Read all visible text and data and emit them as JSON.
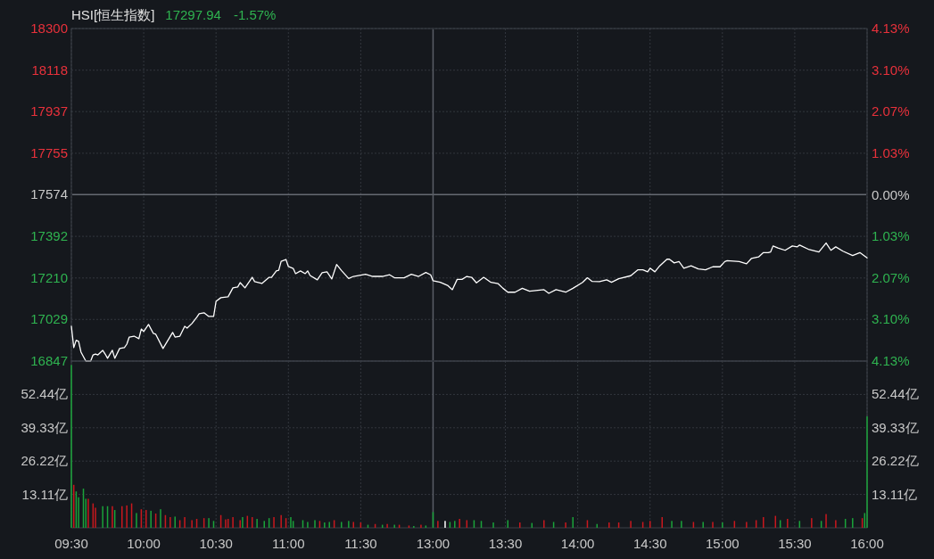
{
  "chart_data": [
    {
      "type": "line",
      "title": "HSI[恒生指数]",
      "annotations": [
        "17297.94",
        "-1.57%"
      ],
      "categories": [
        "09:30",
        null,
        null,
        null,
        null,
        null,
        null,
        null,
        null,
        null,
        null,
        null,
        null,
        null,
        null,
        null,
        null,
        null,
        null,
        null,
        null,
        null,
        null,
        null,
        null,
        null,
        null,
        null,
        null,
        null,
        "10:00",
        null,
        null,
        null,
        null,
        null,
        null,
        null,
        null,
        null,
        null,
        null,
        null,
        null,
        null,
        null,
        null,
        null,
        null,
        null,
        null,
        null,
        null,
        null,
        null,
        null,
        null,
        null,
        null,
        null,
        "10:30",
        null,
        null,
        null,
        null,
        null,
        null,
        null,
        null,
        null,
        null,
        null,
        null,
        null,
        null,
        null,
        null,
        null,
        null,
        null,
        null,
        null,
        null,
        null,
        null,
        null,
        null,
        null,
        null,
        null,
        "11:00",
        null,
        null,
        null,
        null,
        null,
        null,
        null,
        null,
        null,
        null,
        null,
        null,
        null,
        null,
        null,
        null,
        null,
        null,
        null,
        null,
        null,
        null,
        null,
        null,
        null,
        null,
        null,
        null,
        null,
        "11:30",
        null,
        null,
        null,
        null,
        null,
        null,
        null,
        null,
        null,
        null,
        null,
        null,
        null,
        null,
        null,
        null,
        null,
        null,
        null,
        null,
        null,
        null,
        null,
        null,
        null,
        null,
        null,
        null,
        null,
        "13:00",
        null,
        null,
        null,
        null,
        null,
        null,
        null,
        null,
        null,
        null,
        null,
        null,
        null,
        null,
        null,
        null,
        null,
        null,
        null,
        null,
        null,
        null,
        null,
        null,
        null,
        null,
        null,
        null,
        null,
        "13:30",
        null,
        null,
        null,
        null,
        null,
        null,
        null,
        null,
        null,
        null,
        null,
        null,
        null,
        null,
        null,
        null,
        null,
        null,
        null,
        null,
        null,
        null,
        null,
        null,
        null,
        null,
        null,
        null,
        null,
        "14:00",
        null,
        null,
        null,
        null,
        null,
        null,
        null,
        null,
        null,
        null,
        null,
        null,
        null,
        null,
        null,
        null,
        null,
        null,
        null,
        null,
        null,
        null,
        null,
        null,
        null,
        null,
        null,
        null,
        null,
        "14:30",
        null,
        null,
        null,
        null,
        null,
        null,
        null,
        null,
        null,
        null,
        null,
        null,
        null,
        null,
        null,
        null,
        null,
        null,
        null,
        null,
        null,
        null,
        null,
        null,
        null,
        null,
        null,
        null,
        null,
        "15:00",
        null,
        null,
        null,
        null,
        null,
        null,
        null,
        null,
        null,
        null,
        null,
        null,
        null,
        null,
        null,
        null,
        null,
        null,
        null,
        null,
        null,
        null,
        null,
        null,
        null,
        null,
        null,
        null,
        null,
        "15:30",
        null,
        null,
        null,
        null,
        null,
        null,
        null,
        null,
        null,
        null,
        null,
        null,
        null,
        null,
        null,
        null,
        null,
        null,
        null,
        null,
        null,
        null,
        null,
        null,
        null,
        null,
        null,
        null,
        null,
        "16:00"
      ],
      "series": [
        {
          "color": "#ffffff",
          "values": [
            16999,
            16906,
            16938,
            16933,
            16886,
            null,
            16847,
            null,
            16847,
            16874,
            16878,
            16874,
            null,
            16894,
            16878,
            16859,
            null,
            16894,
            16859,
            null,
            16902,
            null,
            16906,
            16921,
            16952,
            null,
            16956,
            null,
            16945,
            16987,
            16976,
            null,
            17007,
            null,
            16968,
            16964,
            null,
            null,
            16902,
            null,
            16937,
            null,
            16972,
            16952,
            null,
            16956,
            null,
            16999,
            16991,
            null,
            17011,
            null,
            17038,
            17054,
            null,
            17058,
            null,
            17042,
            null,
            17042,
            17108,
            null,
            17124,
            null,
            null,
            17128,
            null,
            17167,
            null,
            17171,
            17190,
            null,
            17167,
            null,
            null,
            17213,
            17194,
            null,
            null,
            17186,
            null,
            null,
            17213,
            17213,
            null,
            17241,
            17244,
            17283,
            null,
            17291,
            17260,
            null,
            17252,
            17229,
            null,
            17241,
            null,
            17229,
            17241,
            17221,
            null,
            null,
            17202,
            null,
            17233,
            null,
            17237,
            null,
            17206,
            null,
            17269,
            null,
            17243,
            null,
            null,
            17208,
            null,
            17217,
            null,
            null,
            null,
            null,
            17226,
            null,
            null,
            17217,
            null,
            null,
            null,
            17217,
            null,
            null,
            17224,
            null,
            17211,
            null,
            null,
            null,
            17211,
            null,
            null,
            17226,
            null,
            null,
            17217,
            null,
            null,
            17234,
            null,
            17224,
            17198,
            null,
            null,
            17191,
            null,
            null,
            17178,
            null,
            17159,
            null,
            17204,
            null,
            17204,
            null,
            17217,
            null,
            17213,
            null,
            17189,
            null,
            null,
            17213,
            null,
            null,
            17191,
            null,
            null,
            17185,
            null,
            17165,
            null,
            17148,
            null,
            null,
            17148,
            null,
            null,
            17165,
            null,
            null,
            17152,
            null,
            null,
            null,
            null,
            null,
            17159,
            null,
            17143,
            null,
            null,
            17159,
            null,
            null,
            null,
            17148,
            null,
            null,
            17165,
            null,
            null,
            null,
            17191,
            null,
            17211,
            null,
            17195,
            null,
            null,
            17194,
            null,
            null,
            17202,
            null,
            17191,
            null,
            null,
            17207,
            null,
            null,
            null,
            null,
            17220,
            null,
            null,
            17246,
            null,
            17246,
            null,
            17237,
            17253,
            null,
            17237,
            null,
            17263,
            null,
            null,
            17292,
            17292,
            null,
            17276,
            null,
            17282,
            null,
            17253,
            null,
            null,
            17263,
            null,
            null,
            17250,
            null,
            null,
            17246,
            null,
            null,
            17259,
            null,
            null,
            17259,
            null,
            17282,
            17286,
            null,
            null,
            null,
            null,
            17282,
            null,
            null,
            17272,
            null,
            17295,
            null,
            null,
            17302,
            null,
            17321,
            null,
            17321,
            17324,
            17350,
            null,
            17341,
            null,
            null,
            17331,
            null,
            null,
            17350,
            null,
            17346,
            17354,
            null,
            null,
            null,
            17334,
            null,
            null,
            null,
            17324,
            null,
            null,
            17363,
            null,
            17331,
            null,
            17346,
            null,
            null,
            17327,
            null,
            null,
            null,
            17308,
            null,
            null,
            17321,
            null,
            null,
            17298
          ]
        }
      ],
      "ylim": [
        16847,
        18300
      ],
      "yticks": [
        16847,
        17029,
        17210,
        17392,
        17574,
        17755,
        17937,
        18118,
        18300
      ],
      "y2lim": [
        -4.13,
        4.13
      ],
      "y2ticks": [
        {
          "value": -4.13,
          "label": "4.13%"
        },
        {
          "value": -3.1,
          "label": "3.10%"
        },
        {
          "value": -2.07,
          "label": "2.07%"
        },
        {
          "value": -1.03,
          "label": "1.03%"
        },
        {
          "value": 0,
          "label": "0.00%"
        },
        {
          "value": 1.03,
          "label": "1.03%"
        },
        {
          "value": 2.07,
          "label": "2.07%"
        },
        {
          "value": 3.1,
          "label": "3.10%"
        },
        {
          "value": 4.13,
          "label": "4.13%"
        }
      ],
      "ref_lines": [
        {
          "axis": "y",
          "value": 17574,
          "color": "#666a72"
        },
        {
          "axis": "x",
          "value": "13:00",
          "color": "#5a5e66"
        }
      ],
      "tick_labels": "y",
      "grid": true
    },
    {
      "type": "bar",
      "categories": [
        "09:30",
        null,
        null,
        null,
        null,
        null,
        null,
        null,
        null,
        null,
        null,
        null,
        null,
        null,
        null,
        null,
        null,
        null,
        null,
        null,
        null,
        null,
        null,
        null,
        null,
        null,
        null,
        null,
        null,
        null,
        "10:00",
        null,
        null,
        null,
        null,
        null,
        null,
        null,
        null,
        null,
        null,
        null,
        null,
        null,
        null,
        null,
        null,
        null,
        null,
        null,
        null,
        null,
        null,
        null,
        null,
        null,
        null,
        null,
        null,
        null,
        "10:30",
        null,
        null,
        null,
        null,
        null,
        null,
        null,
        null,
        null,
        null,
        null,
        null,
        null,
        null,
        null,
        null,
        null,
        null,
        null,
        null,
        null,
        null,
        null,
        null,
        null,
        null,
        null,
        null,
        null,
        "11:00",
        null,
        null,
        null,
        null,
        null,
        null,
        null,
        null,
        null,
        null,
        null,
        null,
        null,
        null,
        null,
        null,
        null,
        null,
        null,
        null,
        null,
        null,
        null,
        null,
        null,
        null,
        null,
        null,
        null,
        "11:30",
        null,
        null,
        null,
        null,
        null,
        null,
        null,
        null,
        null,
        null,
        null,
        null,
        null,
        null,
        null,
        null,
        null,
        null,
        null,
        null,
        null,
        null,
        null,
        null,
        null,
        null,
        null,
        null,
        null,
        "13:00",
        null,
        null,
        null,
        null,
        null,
        null,
        null,
        null,
        null,
        null,
        null,
        null,
        null,
        null,
        null,
        null,
        null,
        null,
        null,
        null,
        null,
        null,
        null,
        null,
        null,
        null,
        null,
        null,
        null,
        "13:30",
        null,
        null,
        null,
        null,
        null,
        null,
        null,
        null,
        null,
        null,
        null,
        null,
        null,
        null,
        null,
        null,
        null,
        null,
        null,
        null,
        null,
        null,
        null,
        null,
        null,
        null,
        null,
        null,
        null,
        "14:00",
        null,
        null,
        null,
        null,
        null,
        null,
        null,
        null,
        null,
        null,
        null,
        null,
        null,
        null,
        null,
        null,
        null,
        null,
        null,
        null,
        null,
        null,
        null,
        null,
        null,
        null,
        null,
        null,
        null,
        "14:30",
        null,
        null,
        null,
        null,
        null,
        null,
        null,
        null,
        null,
        null,
        null,
        null,
        null,
        null,
        null,
        null,
        null,
        null,
        null,
        null,
        null,
        null,
        null,
        null,
        null,
        null,
        null,
        null,
        null,
        "15:00",
        null,
        null,
        null,
        null,
        null,
        null,
        null,
        null,
        null,
        null,
        null,
        null,
        null,
        null,
        null,
        null,
        null,
        null,
        null,
        null,
        null,
        null,
        null,
        null,
        null,
        null,
        null,
        null,
        null,
        "15:30",
        null,
        null,
        null,
        null,
        null,
        null,
        null,
        null,
        null,
        null,
        null,
        null,
        null,
        null,
        null,
        null,
        null,
        null,
        null,
        null,
        null,
        null,
        null,
        null,
        null,
        null,
        null,
        null,
        null,
        "16:00"
      ],
      "values": [
        64,
        16.9,
        14.3,
        12.0,
        null,
        15.4,
        11.4,
        11.4,
        null,
        9.6,
        7.9,
        null,
        null,
        8.5,
        null,
        8.5,
        null,
        8.5,
        7.0,
        null,
        null,
        8.5,
        null,
        8.8,
        null,
        9.6,
        null,
        5.8,
        null,
        7.3,
        null,
        7.0,
        null,
        6.7,
        null,
        5.6,
        null,
        7.3,
        null,
        5.0,
        null,
        4.2,
        null,
        4.4,
        null,
        3.0,
        null,
        4.2,
        null,
        null,
        3.0,
        null,
        3.5,
        null,
        null,
        3.8,
        null,
        3.8,
        null,
        2.7,
        null,
        null,
        5.0,
        null,
        3.3,
        3.5,
        null,
        4.2,
        null,
        null,
        3.0,
        4.2,
        null,
        4.7,
        null,
        4.2,
        null,
        3.5,
        null,
        null,
        2.7,
        null,
        3.8,
        null,
        4.2,
        null,
        null,
        5.0,
        null,
        3.8,
        null,
        4.2,
        2.7,
        null,
        null,
        null,
        3.0,
        null,
        2.3,
        null,
        null,
        3.0,
        null,
        2.7,
        null,
        2.1,
        null,
        2.3,
        null,
        3.0,
        null,
        null,
        2.3,
        null,
        null,
        2.7,
        null,
        2.3,
        null,
        null,
        2.1,
        null,
        null,
        1.2,
        null,
        null,
        1.5,
        null,
        null,
        1.2,
        null,
        1.5,
        null,
        null,
        1.2,
        null,
        1.2,
        null,
        null,
        null,
        0.9,
        null,
        0.7,
        null,
        null,
        1.2,
        null,
        0.9,
        null,
        null,
        6.2,
        null,
        2.7,
        null,
        null,
        2.7,
        null,
        2.3,
        null,
        2.7,
        null,
        3.5,
        null,
        null,
        3.0,
        null,
        null,
        3.0,
        null,
        null,
        2.7,
        null,
        null,
        null,
        null,
        2.1,
        null,
        null,
        null,
        null,
        null,
        3.0,
        null,
        null,
        null,
        null,
        2.1,
        null,
        null,
        null,
        null,
        1.9,
        null,
        null,
        null,
        null,
        3.0,
        null,
        null,
        null,
        2.3,
        null,
        null,
        null,
        null,
        2.1,
        null,
        null,
        4.2,
        null,
        null,
        null,
        null,
        null,
        3.0,
        null,
        null,
        null,
        1.5,
        null,
        null,
        null,
        null,
        2.1,
        null,
        null,
        null,
        2.1,
        null,
        null,
        null,
        null,
        2.7,
        null,
        null,
        null,
        null,
        2.3,
        null,
        null,
        2.7,
        null,
        null,
        null,
        null,
        4.2,
        null,
        null,
        null,
        2.7,
        null,
        null,
        null,
        2.7,
        null,
        null,
        null,
        null,
        2.3,
        null,
        null,
        null,
        2.3,
        null,
        null,
        null,
        2.3,
        null,
        null,
        null,
        2.1,
        null,
        null,
        null,
        null,
        2.7,
        null,
        null,
        null,
        null,
        2.3,
        null,
        null,
        null,
        3.0,
        null,
        null,
        4.2,
        null,
        null,
        null,
        null,
        4.7,
        null,
        3.0,
        null,
        null,
        3.5,
        null,
        null,
        null,
        null,
        2.7,
        null,
        null,
        null,
        null,
        3.8,
        null,
        null,
        null,
        2.7,
        null,
        5.4,
        null,
        null,
        null,
        3.0,
        null,
        null,
        null,
        3.5,
        null,
        null,
        3.8,
        null,
        null,
        null,
        3.8,
        5.8,
        43.8
      ],
      "colors": [
        "#1aa33a",
        "#c9181e",
        "#1aa33a",
        "#1aa33a",
        null,
        "#1aa33a",
        "#1aa33a",
        "#c9181e",
        null,
        "#c9181e",
        "#c9181e",
        null,
        null,
        "#1aa33a",
        null,
        "#1aa33a",
        null,
        "#c9181e",
        "#1aa33a",
        null,
        null,
        "#c9181e",
        null,
        "#c9181e",
        null,
        "#c9181e",
        null,
        "#1aa33a",
        null,
        "#c9181e",
        null,
        "#c9181e",
        null,
        "#1aa33a",
        null,
        "#c9181e",
        null,
        "#1aa33a",
        null,
        "#c9181e",
        null,
        "#c9181e",
        null,
        "#1aa33a",
        null,
        "#c9181e",
        null,
        "#c9181e",
        null,
        null,
        "#c9181e",
        null,
        "#c9181e",
        null,
        null,
        "#c9181e",
        null,
        "#1aa33a",
        null,
        "#1aa33a",
        null,
        null,
        "#c9181e",
        null,
        "#c9181e",
        "#c9181e",
        null,
        "#c9181e",
        null,
        null,
        "#c9181e",
        "#1aa33a",
        null,
        "#c9181e",
        null,
        "#c9181e",
        null,
        "#1aa33a",
        null,
        null,
        "#1aa33a",
        null,
        "#1aa33a",
        null,
        "#c9181e",
        null,
        null,
        "#c9181e",
        null,
        "#c9181e",
        null,
        "#1aa33a",
        "#1aa33a",
        null,
        null,
        null,
        "#1aa33a",
        null,
        "#1aa33a",
        null,
        null,
        "#1aa33a",
        null,
        "#c9181e",
        null,
        "#1aa33a",
        null,
        "#1aa33a",
        null,
        "#c9181e",
        null,
        null,
        "#1aa33a",
        null,
        null,
        "#1aa33a",
        null,
        "#c9181e",
        null,
        null,
        "#c9181e",
        null,
        null,
        "#1aa33a",
        null,
        null,
        "#c9181e",
        null,
        null,
        "#1aa33a",
        null,
        "#c9181e",
        null,
        null,
        "#1aa33a",
        null,
        "#c9181e",
        null,
        null,
        null,
        "#c9181e",
        null,
        "#1aa33a",
        null,
        null,
        "#c9181e",
        null,
        "#1aa33a",
        null,
        null,
        "#1aa33a",
        null,
        "#c9181e",
        null,
        null,
        "#ffffff",
        null,
        "#1aa33a",
        null,
        "#1aa33a",
        null,
        "#c9181e",
        null,
        null,
        "#c9181e",
        null,
        null,
        "#1aa33a",
        null,
        null,
        "#1aa33a",
        null,
        null,
        null,
        null,
        "#1aa33a",
        null,
        null,
        null,
        null,
        null,
        "#1aa33a",
        null,
        null,
        null,
        null,
        "#c9181e",
        null,
        null,
        null,
        null,
        "#1aa33a",
        null,
        null,
        null,
        null,
        "#c9181e",
        null,
        null,
        null,
        "#1aa33a",
        null,
        null,
        null,
        null,
        "#c9181e",
        null,
        null,
        "#1aa33a",
        null,
        null,
        null,
        null,
        null,
        "#c9181e",
        null,
        null,
        null,
        "#1aa33a",
        null,
        null,
        null,
        null,
        "#c9181e",
        null,
        null,
        null,
        "#c9181e",
        null,
        null,
        null,
        null,
        "#c9181e",
        null,
        null,
        null,
        null,
        "#c9181e",
        null,
        null,
        "#c9181e",
        null,
        null,
        null,
        null,
        "#c9181e",
        null,
        null,
        null,
        "#1aa33a",
        null,
        null,
        null,
        "#1aa33a",
        null,
        null,
        null,
        null,
        "#c9181e",
        null,
        null,
        null,
        "#1aa33a",
        null,
        null,
        null,
        "#c9181e",
        null,
        null,
        null,
        "#1aa33a",
        null,
        null,
        null,
        null,
        "#c9181e",
        null,
        null,
        null,
        null,
        "#c9181e",
        null,
        null,
        null,
        "#c9181e",
        null,
        null,
        "#c9181e",
        null,
        null,
        null,
        null,
        "#c9181e",
        null,
        "#1aa33a",
        null,
        null,
        "#c9181e",
        null,
        null,
        null,
        null,
        "#1aa33a",
        null,
        null,
        null,
        null,
        "#c9181e",
        null,
        null,
        null,
        "#1aa33a",
        null,
        "#c9181e",
        null,
        null,
        null,
        "#c9181e",
        null,
        null,
        null,
        "#1aa33a",
        null,
        null,
        "#1aa33a",
        null,
        null,
        null,
        "#c9181e",
        "#1aa33a",
        "#1aa33a"
      ],
      "ylim": [
        0,
        65.55
      ],
      "yticks": [
        {
          "value": 13.11,
          "label": "13.11亿"
        },
        {
          "value": 26.22,
          "label": "26.22亿"
        },
        {
          "value": 39.33,
          "label": "39.33亿"
        },
        {
          "value": 52.44,
          "label": "52.44亿"
        }
      ],
      "y2lim": [
        0,
        65.55
      ],
      "y2ticks": [
        {
          "value": 13.11,
          "label": "13.11亿"
        },
        {
          "value": 26.22,
          "label": "26.22亿"
        },
        {
          "value": 39.33,
          "label": "39.33亿"
        },
        {
          "value": 52.44,
          "label": "52.44亿"
        }
      ],
      "ref_lines": [
        {
          "axis": "x",
          "value": "13:00",
          "color": "#5a5e66"
        }
      ],
      "grid": true
    }
  ]
}
